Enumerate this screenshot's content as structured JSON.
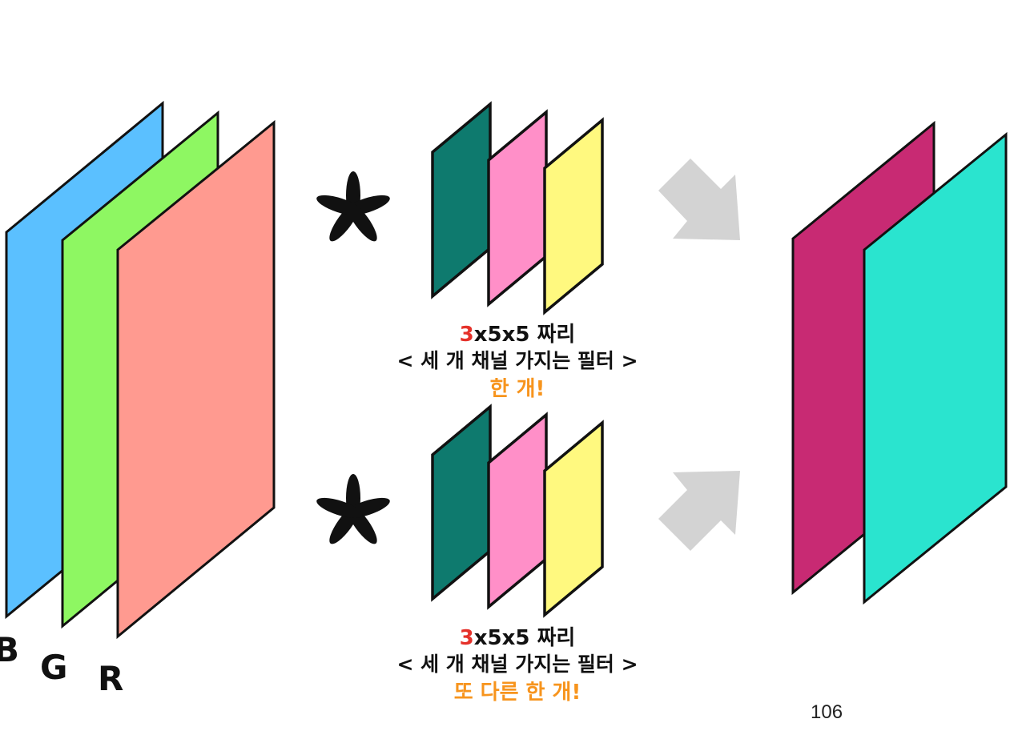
{
  "input_channels": {
    "labels": [
      "B",
      "G",
      "R"
    ],
    "colors": {
      "blue": "#5bc0ff",
      "green": "#8ef762",
      "red": "#ff9a90"
    }
  },
  "operator_symbol": "*",
  "filter_colors": {
    "teal": "#0e7a6e",
    "pink": "#ff8fc8",
    "yellow": "#fff97f"
  },
  "filter1": {
    "size_lead": "3",
    "size_rest": "x5x5 짜리",
    "description": "< 세 개 채널 가지는 필터 >",
    "count": "한 개!"
  },
  "filter2": {
    "size_lead": "3",
    "size_rest": "x5x5 짜리",
    "description": "< 세 개 채널 가지는 필터 >",
    "count": "또 다른 한 개!"
  },
  "output_colors": {
    "magenta": "#c82a73",
    "aqua": "#2ae4cf"
  },
  "accent_colors": {
    "red_text": "#e5312a",
    "orange_text": "#f7941d",
    "arrow": "#d3d3d3"
  },
  "page_number": "106"
}
